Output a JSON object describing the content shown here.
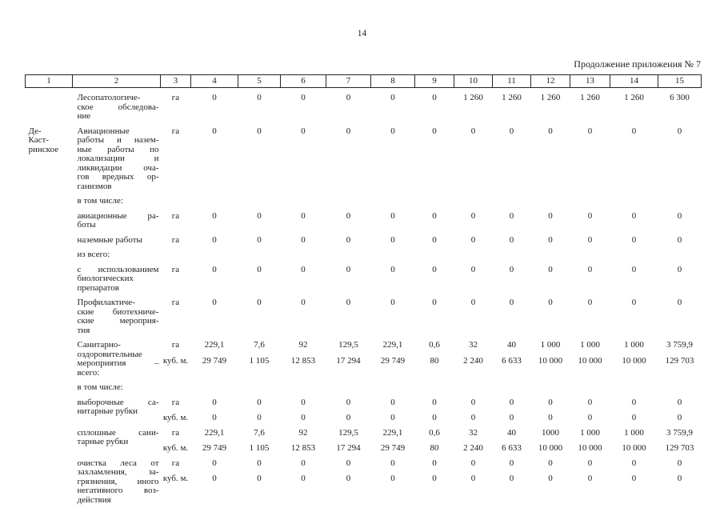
{
  "page": {
    "number": "14",
    "continuation": "Продолжение приложения № 7"
  },
  "table": {
    "column_numbers": [
      "1",
      "2",
      "3",
      "4",
      "5",
      "6",
      "7",
      "8",
      "9",
      "10",
      "11",
      "12",
      "13",
      "14",
      "15"
    ],
    "rows": [
      {
        "forestry_lines": [],
        "label_lines": [
          "Лесопатологиче-",
          "ское обследова-",
          "ние"
        ],
        "value_lines": [
          {
            "unit": "га",
            "values": [
              "0",
              "0",
              "0",
              "0",
              "0",
              "0",
              "1 260",
              "1 260",
              "1 260",
              "1 260",
              "1 260",
              "6 300"
            ]
          }
        ]
      },
      {
        "forestry_lines": [
          "Де-",
          "Каст-",
          "ринское"
        ],
        "label_lines": [
          "Авиационные",
          "работы и назем-",
          "ные работы по",
          "локализации и",
          "ликвидации оча-",
          "гов вредных ор-",
          "ганизмов"
        ],
        "value_lines": [
          {
            "unit": "га",
            "values": [
              "0",
              "0",
              "0",
              "0",
              "0",
              "0",
              "0",
              "0",
              "0",
              "0",
              "0",
              "0"
            ]
          }
        ]
      },
      {
        "forestry_lines": [],
        "label_lines": [
          "в том числе:"
        ],
        "value_lines": []
      },
      {
        "forestry_lines": [],
        "label_lines": [
          "авиационные ра-",
          "боты"
        ],
        "value_lines": [
          {
            "unit": "га",
            "values": [
              "0",
              "0",
              "0",
              "0",
              "0",
              "0",
              "0",
              "0",
              "0",
              "0",
              "0",
              "0"
            ]
          }
        ]
      },
      {
        "forestry_lines": [],
        "label_lines": [
          "наземные работы"
        ],
        "value_lines": [
          {
            "unit": "га",
            "values": [
              "0",
              "0",
              "0",
              "0",
              "0",
              "0",
              "0",
              "0",
              "0",
              "0",
              "0",
              "0"
            ]
          }
        ]
      },
      {
        "forestry_lines": [],
        "label_lines": [
          "из всего:"
        ],
        "value_lines": []
      },
      {
        "forestry_lines": [],
        "label_lines": [
          "с использованием",
          "биологических",
          "препаратов"
        ],
        "value_lines": [
          {
            "unit": "га",
            "values": [
              "0",
              "0",
              "0",
              "0",
              "0",
              "0",
              "0",
              "0",
              "0",
              "0",
              "0",
              "0"
            ]
          }
        ]
      },
      {
        "forestry_lines": [],
        "label_lines": [
          "Профилактиче-",
          "ские биотехниче-",
          "ские мероприя-",
          "тия"
        ],
        "value_lines": [
          {
            "unit": "га",
            "values": [
              "0",
              "0",
              "0",
              "0",
              "0",
              "0",
              "0",
              "0",
              "0",
              "0",
              "0",
              "0"
            ]
          }
        ]
      },
      {
        "forestry_lines": [],
        "label_lines": [
          "Санитарно-",
          "оздоровительные",
          "мероприятия –",
          "всего:"
        ],
        "value_lines": [
          {
            "unit": "га",
            "values": [
              "229,1",
              "7,6",
              "92",
              "129,5",
              "229,1",
              "0,6",
              "32",
              "40",
              "1 000",
              "1 000",
              "1 000",
              "3 759,9"
            ]
          },
          {
            "unit": "куб. м.",
            "values": [
              "29 749",
              "1 105",
              "12 853",
              "17 294",
              "29 749",
              "80",
              "2 240",
              "6 633",
              "10 000",
              "10 000",
              "10 000",
              "129 703"
            ]
          }
        ]
      },
      {
        "forestry_lines": [],
        "label_lines": [
          "в том числе:"
        ],
        "value_lines": []
      },
      {
        "forestry_lines": [],
        "label_lines": [
          "выборочные са-",
          "нитарные рубки"
        ],
        "value_lines": [
          {
            "unit": "га",
            "values": [
              "0",
              "0",
              "0",
              "0",
              "0",
              "0",
              "0",
              "0",
              "0",
              "0",
              "0",
              "0"
            ]
          },
          {
            "unit": "куб. м.",
            "values": [
              "0",
              "0",
              "0",
              "0",
              "0",
              "0",
              "0",
              "0",
              "0",
              "0",
              "0",
              "0"
            ]
          }
        ]
      },
      {
        "forestry_lines": [],
        "label_lines": [
          "сплошные сани-",
          "тарные рубки"
        ],
        "value_lines": [
          {
            "unit": "га",
            "values": [
              "229,1",
              "7,6",
              "92",
              "129,5",
              "229,1",
              "0,6",
              "32",
              "40",
              "1000",
              "1 000",
              "1 000",
              "3 759,9"
            ]
          },
          {
            "unit": "куб. м.",
            "values": [
              "29 749",
              "1 105",
              "12 853",
              "17 294",
              "29 749",
              "80",
              "2 240",
              "6 633",
              "10 000",
              "10 000",
              "10 000",
              "129 703"
            ]
          }
        ]
      },
      {
        "forestry_lines": [],
        "label_lines": [
          "очистка леса от",
          "захламления, за-",
          "грязнения, иного",
          "негативного воз-",
          "действия"
        ],
        "value_lines": [
          {
            "unit": "га",
            "values": [
              "0",
              "0",
              "0",
              "0",
              "0",
              "0",
              "0",
              "0",
              "0",
              "0",
              "0",
              "0"
            ]
          },
          {
            "unit": "куб. м.",
            "values": [
              "0",
              "0",
              "0",
              "0",
              "0",
              "0",
              "0",
              "0",
              "0",
              "0",
              "0",
              "0"
            ]
          }
        ]
      }
    ]
  }
}
